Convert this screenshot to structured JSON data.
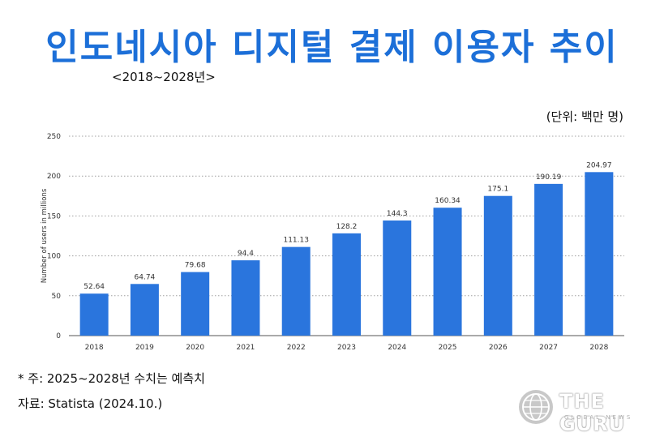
{
  "title": "인도네시아 디지털 결제 이용자 추이",
  "subtitle": "<2018~2028년>",
  "unit_note": "(단위: 백만 명)",
  "footnote": "* 주: 2025~2028년 수치는 예측치",
  "source": "자료: Statista (2024.10.)",
  "watermark": {
    "name": "THE GURU",
    "sub": "GLOBAL NEWS"
  },
  "colors": {
    "title": "#1c6fd8",
    "bar": "#2a75dd",
    "grid": "#a0a0a0"
  },
  "chart_data": {
    "type": "bar",
    "categories": [
      "2018",
      "2019",
      "2020",
      "2021",
      "2022",
      "2023",
      "2024",
      "2025",
      "2026",
      "2027",
      "2028"
    ],
    "values": [
      52.64,
      64.74,
      79.68,
      94.4,
      111.13,
      128.2,
      144.3,
      160.34,
      175.1,
      190.19,
      204.97
    ],
    "data_labels": [
      "52.64",
      "64.74",
      "79.68",
      "94.4",
      "111.13",
      "128.2",
      "144.3",
      "160.34",
      "175.1",
      "190.19",
      "204.97"
    ],
    "ylabel": "Number of users in millions",
    "ylim": [
      0,
      250
    ],
    "yticks": [
      0,
      50,
      100,
      150,
      200,
      250
    ],
    "grid": true
  }
}
